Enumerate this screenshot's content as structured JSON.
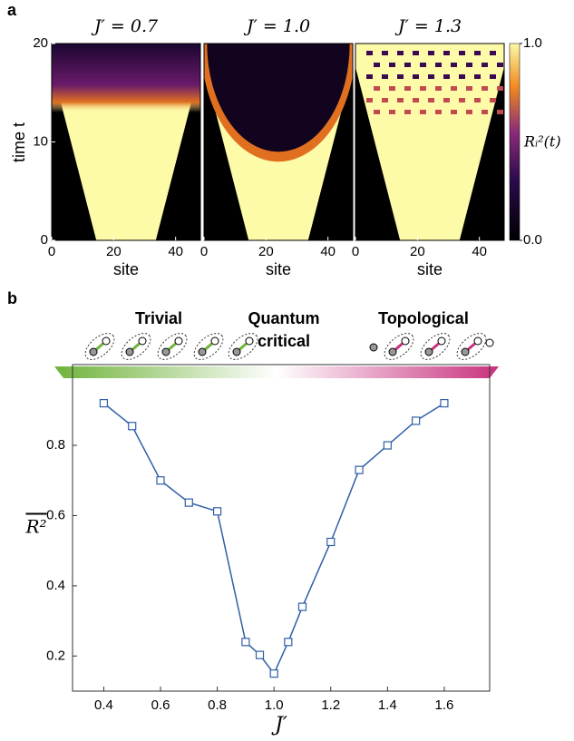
{
  "panels": {
    "a": "a",
    "b": "b"
  },
  "diagram": {
    "left": "Trivial",
    "middle": [
      "Quantum",
      "critical"
    ],
    "right": "Topological"
  },
  "chart_data": [
    {
      "type": "heatmap",
      "title": "J′ = 0.7",
      "xlabel": "site",
      "ylabel": "time t",
      "xlim": [
        0,
        48
      ],
      "ylim": [
        0,
        20
      ],
      "xticks": [
        0,
        20,
        40
      ],
      "yticks": [
        0,
        10,
        20
      ]
    },
    {
      "type": "heatmap",
      "title": "J′ = 1.0",
      "xlabel": "site",
      "xlim": [
        0,
        48
      ],
      "ylim": [
        0,
        20
      ],
      "xticks": [
        0,
        20,
        40
      ]
    },
    {
      "type": "heatmap",
      "title": "J′ = 1.3",
      "xlabel": "site",
      "xlim": [
        0,
        48
      ],
      "ylim": [
        0,
        20
      ],
      "xticks": [
        0,
        20,
        40
      ],
      "colorbar": {
        "label": "Rᵢ²(t)",
        "lim": [
          0,
          1
        ],
        "ticks": [
          {
            "value": 0,
            "label": "0.0"
          },
          {
            "value": 1,
            "label": "1.0"
          }
        ]
      }
    },
    {
      "type": "line",
      "xlabel": "J′",
      "ylabel": "R²",
      "color": "#2f5fa7",
      "x": [
        0.4,
        0.5,
        0.6,
        0.7,
        0.8,
        0.9,
        0.95,
        1.0,
        1.05,
        1.1,
        1.2,
        1.3,
        1.4,
        1.5,
        1.6
      ],
      "values": [
        0.92,
        0.855,
        0.7,
        0.637,
        0.612,
        0.24,
        0.203,
        0.15,
        0.24,
        0.34,
        0.525,
        0.73,
        0.8,
        0.87,
        0.92
      ],
      "xlim": [
        0.29,
        1.76
      ],
      "ylim": [
        0.1,
        1.03
      ],
      "xticks": [
        0.4,
        0.6,
        0.8,
        {
          "value": 1,
          "label": "1.0"
        },
        1.2,
        1.4,
        1.6
      ],
      "yticks": [
        0.2,
        0.4,
        0.6,
        0.8
      ]
    }
  ]
}
